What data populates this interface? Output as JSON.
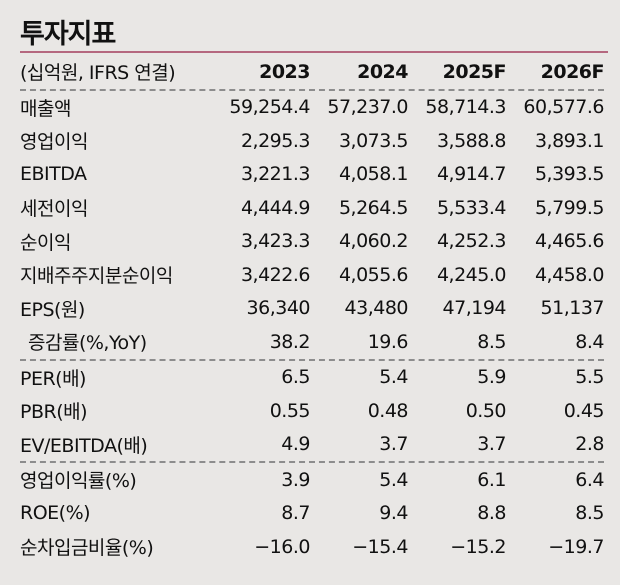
{
  "title": "투자지표",
  "header": {
    "label": "(십억원, IFRS 연결)",
    "years": [
      "2023",
      "2024",
      "2025F",
      "2026F"
    ]
  },
  "rows": [
    {
      "label": "매출액",
      "values": [
        "59,254.4",
        "57,237.0",
        "58,714.3",
        "60,577.6"
      ]
    },
    {
      "label": "영업이익",
      "values": [
        "2,295.3",
        "3,073.5",
        "3,588.8",
        "3,893.1"
      ]
    },
    {
      "label": "EBITDA",
      "values": [
        "3,221.3",
        "4,058.1",
        "4,914.7",
        "5,393.5"
      ]
    },
    {
      "label": "세전이익",
      "values": [
        "4,444.9",
        "5,264.5",
        "5,533.4",
        "5,799.5"
      ]
    },
    {
      "label": "순이익",
      "values": [
        "3,423.3",
        "4,060.2",
        "4,252.3",
        "4,465.6"
      ]
    },
    {
      "label": "지배주주지분순이익",
      "values": [
        "3,422.6",
        "4,055.6",
        "4,245.0",
        "4,458.0"
      ]
    },
    {
      "label": "EPS(원)",
      "values": [
        "36,340",
        "43,480",
        "47,194",
        "51,137"
      ]
    },
    {
      "label": "증감률(%,YoY)",
      "values": [
        "38.2",
        "19.6",
        "8.5",
        "8.4"
      ],
      "indent": true,
      "divider": true
    },
    {
      "label": "PER(배)",
      "values": [
        "6.5",
        "5.4",
        "5.9",
        "5.5"
      ]
    },
    {
      "label": "PBR(배)",
      "values": [
        "0.55",
        "0.48",
        "0.50",
        "0.45"
      ]
    },
    {
      "label": "EV/EBITDA(배)",
      "values": [
        "4.9",
        "3.7",
        "3.7",
        "2.8"
      ],
      "divider": true
    },
    {
      "label": "영업이익률(%)",
      "values": [
        "3.9",
        "5.4",
        "6.1",
        "6.4"
      ]
    },
    {
      "label": "ROE(%)",
      "values": [
        "8.7",
        "9.4",
        "8.8",
        "8.5"
      ]
    },
    {
      "label": "순차입금비율(%)",
      "values": [
        "−16.0",
        "−15.4",
        "−15.2",
        "−19.7"
      ]
    }
  ]
}
